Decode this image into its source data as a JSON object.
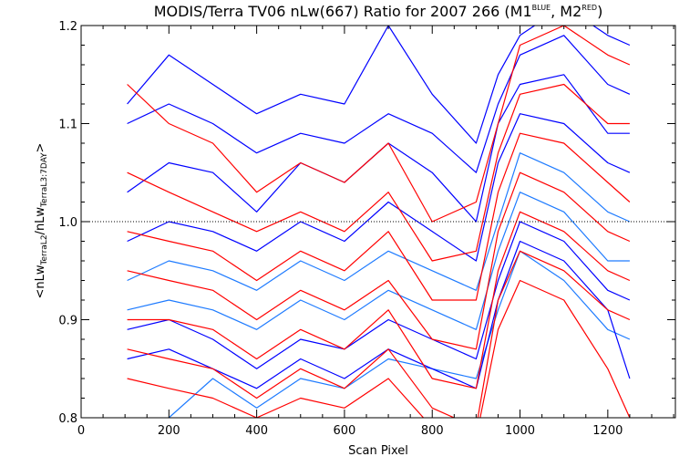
{
  "chart_data": {
    "type": "line",
    "title": {
      "main": "MODIS/Terra TV06 nLw(667) Ratio for 2007 266 (M1",
      "sup1": "BLUE",
      "mid": ", M2",
      "sup2": "RED",
      "end": ")"
    },
    "xlabel": "Scan Pixel",
    "ylabel": {
      "open": "<nLw",
      "sub1": "TerraL2",
      "mid": "/nLw",
      "sub2": "TerraL3:7DAY",
      "close": ">"
    },
    "xlim": [
      0,
      1354
    ],
    "ylim": [
      0.8,
      1.2
    ],
    "x_ticks": [
      0,
      200,
      400,
      600,
      800,
      1000,
      1200
    ],
    "x_tick_labels": [
      "0",
      "200",
      "400",
      "600",
      "800",
      "1000",
      "1200"
    ],
    "y_ticks": [
      0.8,
      0.9,
      1.0,
      1.1,
      1.2
    ],
    "y_tick_labels": [
      "0.8",
      "0.9",
      "1.0",
      "1.1",
      "1.2"
    ],
    "reference_line": {
      "y": 1.0,
      "style": "dotted"
    },
    "grid": false,
    "legend": "none",
    "colors": {
      "m1": "#0000ff",
      "m1_light": "#1e7bff",
      "m2": "#ff0000"
    },
    "series": [
      {
        "group": "m1",
        "color": "#0000ff",
        "x": [
          105,
          200,
          300,
          400,
          500,
          600,
          700,
          800,
          900,
          950,
          1000,
          1100,
          1200,
          1250
        ],
        "y": [
          1.12,
          1.17,
          1.14,
          1.11,
          1.13,
          1.12,
          1.2,
          1.13,
          1.08,
          1.15,
          1.19,
          1.22,
          1.19,
          1.18
        ]
      },
      {
        "group": "m1",
        "color": "#0000ff",
        "x": [
          105,
          200,
          300,
          400,
          500,
          600,
          700,
          800,
          900,
          950,
          1000,
          1100,
          1200,
          1250
        ],
        "y": [
          1.1,
          1.12,
          1.1,
          1.07,
          1.09,
          1.08,
          1.11,
          1.09,
          1.05,
          1.12,
          1.17,
          1.19,
          1.14,
          1.13
        ]
      },
      {
        "group": "m1",
        "color": "#0000ff",
        "x": [
          105,
          200,
          300,
          400,
          500,
          600,
          700,
          800,
          900,
          950,
          1000,
          1100,
          1200,
          1250
        ],
        "y": [
          1.03,
          1.06,
          1.05,
          1.01,
          1.06,
          1.04,
          1.08,
          1.05,
          1.0,
          1.1,
          1.14,
          1.15,
          1.09,
          1.09
        ]
      },
      {
        "group": "m1",
        "color": "#0000ff",
        "x": [
          105,
          200,
          300,
          400,
          500,
          600,
          700,
          800,
          900,
          950,
          1000,
          1100,
          1200,
          1250
        ],
        "y": [
          0.98,
          1.0,
          0.99,
          0.97,
          1.0,
          0.98,
          1.02,
          0.99,
          0.96,
          1.06,
          1.11,
          1.1,
          1.06,
          1.05
        ]
      },
      {
        "group": "m1",
        "color": "#1e7bff",
        "x": [
          105,
          200,
          300,
          400,
          500,
          600,
          700,
          800,
          900,
          950,
          1000,
          1100,
          1200,
          1250
        ],
        "y": [
          0.94,
          0.96,
          0.95,
          0.93,
          0.96,
          0.94,
          0.97,
          0.95,
          0.93,
          1.0,
          1.07,
          1.05,
          1.01,
          1.0
        ]
      },
      {
        "group": "m1",
        "color": "#1e7bff",
        "x": [
          105,
          200,
          300,
          400,
          500,
          600,
          700,
          800,
          900,
          950,
          1000,
          1100,
          1200,
          1250
        ],
        "y": [
          0.91,
          0.92,
          0.91,
          0.89,
          0.92,
          0.9,
          0.93,
          0.91,
          0.89,
          0.97,
          1.03,
          1.01,
          0.96,
          0.96
        ]
      },
      {
        "group": "m1",
        "color": "#0000ff",
        "x": [
          105,
          200,
          300,
          400,
          500,
          600,
          700,
          800,
          900,
          950,
          1000,
          1100,
          1200,
          1250
        ],
        "y": [
          0.89,
          0.9,
          0.88,
          0.85,
          0.88,
          0.87,
          0.9,
          0.88,
          0.86,
          0.94,
          1.0,
          0.98,
          0.93,
          0.92
        ]
      },
      {
        "group": "m1",
        "color": "#1e7bff",
        "x": [
          105,
          200,
          300,
          400,
          500,
          600,
          700,
          800,
          900,
          950,
          1000,
          1100,
          1200,
          1250
        ],
        "y": [
          0.79,
          0.8,
          0.84,
          0.81,
          0.84,
          0.83,
          0.86,
          0.85,
          0.84,
          0.91,
          0.97,
          0.94,
          0.89,
          0.88
        ]
      },
      {
        "group": "m1",
        "color": "#0000ff",
        "x": [
          105,
          200,
          300,
          400,
          500,
          600,
          700,
          800,
          900,
          950,
          1000,
          1100,
          1200,
          1250
        ],
        "y": [
          0.86,
          0.87,
          0.85,
          0.83,
          0.86,
          0.84,
          0.87,
          0.85,
          0.83,
          0.92,
          0.98,
          0.96,
          0.91,
          0.84
        ]
      },
      {
        "group": "m2",
        "color": "#ff0000",
        "x": [
          105,
          200,
          300,
          400,
          500,
          600,
          700,
          800,
          900,
          950,
          1000,
          1100,
          1200,
          1250
        ],
        "y": [
          1.14,
          1.1,
          1.08,
          1.03,
          1.06,
          1.04,
          1.08,
          1.0,
          1.02,
          1.1,
          1.18,
          1.2,
          1.17,
          1.16
        ]
      },
      {
        "group": "m2",
        "color": "#ff0000",
        "x": [
          105,
          200,
          300,
          400,
          500,
          600,
          700,
          800,
          900,
          950,
          1000,
          1100,
          1200,
          1250
        ],
        "y": [
          1.05,
          1.03,
          1.01,
          0.99,
          1.01,
          0.99,
          1.03,
          0.96,
          0.97,
          1.07,
          1.13,
          1.14,
          1.1,
          1.1
        ]
      },
      {
        "group": "m2",
        "color": "#ff0000",
        "x": [
          105,
          200,
          300,
          400,
          500,
          600,
          700,
          800,
          900,
          950,
          1000,
          1100,
          1200,
          1250
        ],
        "y": [
          0.99,
          0.98,
          0.97,
          0.94,
          0.97,
          0.95,
          0.99,
          0.92,
          0.92,
          1.03,
          1.09,
          1.08,
          1.04,
          1.02
        ]
      },
      {
        "group": "m2",
        "color": "#ff0000",
        "x": [
          105,
          200,
          300,
          400,
          500,
          600,
          700,
          800,
          900,
          950,
          1000,
          1100,
          1200,
          1250
        ],
        "y": [
          0.95,
          0.94,
          0.93,
          0.9,
          0.93,
          0.91,
          0.94,
          0.88,
          0.87,
          0.99,
          1.05,
          1.03,
          0.99,
          0.98
        ]
      },
      {
        "group": "m2",
        "color": "#ff0000",
        "x": [
          105,
          200,
          300,
          400,
          500,
          600,
          700,
          800,
          900,
          950,
          1000,
          1100,
          1200,
          1250
        ],
        "y": [
          0.9,
          0.9,
          0.89,
          0.86,
          0.89,
          0.87,
          0.91,
          0.84,
          0.83,
          0.95,
          1.01,
          0.99,
          0.95,
          0.94
        ]
      },
      {
        "group": "m2",
        "color": "#ff0000",
        "x": [
          105,
          200,
          300,
          400,
          500,
          600,
          700,
          800,
          900,
          950,
          1000,
          1100,
          1200,
          1250
        ],
        "y": [
          0.87,
          0.86,
          0.85,
          0.82,
          0.85,
          0.83,
          0.87,
          0.81,
          0.79,
          0.92,
          0.97,
          0.95,
          0.91,
          0.9
        ]
      },
      {
        "group": "m2",
        "color": "#ff0000",
        "x": [
          105,
          200,
          300,
          400,
          500,
          600,
          700,
          800,
          900,
          950,
          1000,
          1100,
          1200,
          1250
        ],
        "y": [
          0.84,
          0.83,
          0.82,
          0.8,
          0.82,
          0.81,
          0.84,
          0.79,
          0.78,
          0.89,
          0.94,
          0.92,
          0.85,
          0.8
        ]
      }
    ]
  }
}
